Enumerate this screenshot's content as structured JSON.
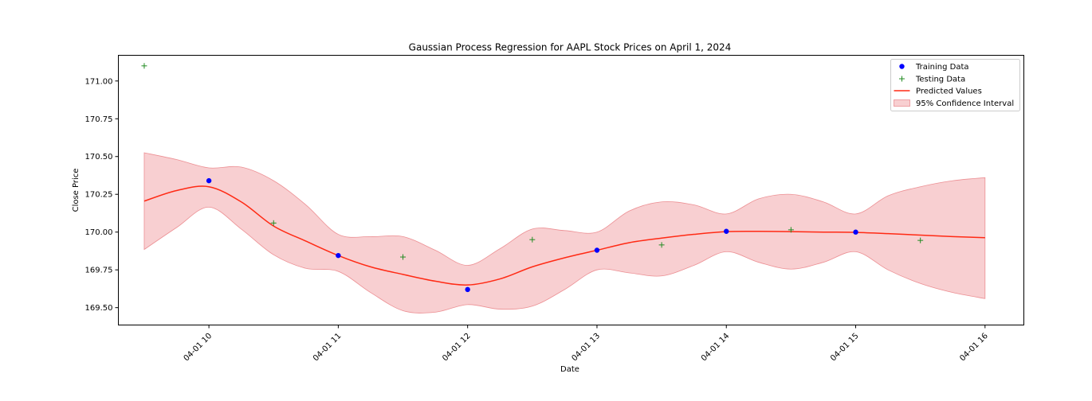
{
  "chart_data": {
    "type": "line",
    "title": "Gaussian Process Regression for AAPL Stock Prices on April 1, 2024",
    "xlabel": "Date",
    "ylabel": "Close Price",
    "x_ticks": [
      "04-01 10",
      "04-01 11",
      "04-01 12",
      "04-01 13",
      "04-01 14",
      "04-01 15",
      "04-01 16"
    ],
    "x_tick_values": [
      10,
      11,
      12,
      13,
      14,
      15,
      16
    ],
    "y_ticks": [
      "169.50",
      "169.75",
      "170.00",
      "170.25",
      "170.50",
      "170.75",
      "171.00"
    ],
    "y_tick_values": [
      169.5,
      169.75,
      170.0,
      170.25,
      170.5,
      170.75,
      171.0
    ],
    "xlim": [
      9.3,
      16.3
    ],
    "ylim": [
      169.385,
      171.17
    ],
    "grid": false,
    "legend_position": "top-right",
    "series": [
      {
        "name": "Training Data",
        "kind": "scatter",
        "marker": "circle",
        "color": "#0000ff",
        "x": [
          10,
          11,
          12,
          13,
          14,
          15
        ],
        "y": [
          170.34,
          169.845,
          169.62,
          169.88,
          170.005,
          170.0
        ]
      },
      {
        "name": "Testing Data",
        "kind": "scatter",
        "marker": "plus",
        "color": "#228b22",
        "x": [
          9.5,
          10.5,
          11.5,
          12.5,
          13.5,
          14.5,
          15.5
        ],
        "y": [
          171.1,
          170.06,
          169.835,
          169.95,
          169.915,
          170.015,
          169.945
        ]
      },
      {
        "name": "Predicted Values",
        "kind": "line",
        "color": "#ff2a14",
        "x": [
          9.5,
          9.75,
          10.0,
          10.25,
          10.5,
          10.75,
          11.0,
          11.25,
          11.5,
          11.75,
          12.0,
          12.25,
          12.5,
          12.75,
          13.0,
          13.25,
          13.5,
          13.75,
          14.0,
          14.25,
          14.5,
          14.75,
          15.0,
          15.25,
          15.5,
          15.75,
          16.0
        ],
        "y": [
          170.205,
          170.275,
          170.3,
          170.2,
          170.04,
          169.94,
          169.845,
          169.77,
          169.72,
          169.675,
          169.65,
          169.69,
          169.77,
          169.83,
          169.88,
          169.93,
          169.96,
          169.985,
          170.003,
          170.005,
          170.003,
          170.0,
          169.998,
          169.99,
          169.98,
          169.97,
          169.963
        ]
      },
      {
        "name": "95% Confidence Interval",
        "kind": "band",
        "color": "#f4b5b8",
        "x": [
          9.5,
          9.75,
          10.0,
          10.25,
          10.5,
          10.75,
          11.0,
          11.25,
          11.5,
          11.75,
          12.0,
          12.25,
          12.5,
          12.75,
          13.0,
          13.25,
          13.5,
          13.75,
          14.0,
          14.25,
          14.5,
          14.75,
          15.0,
          15.25,
          15.5,
          15.75,
          16.0
        ],
        "upper": [
          170.525,
          170.48,
          170.425,
          170.43,
          170.34,
          170.18,
          169.985,
          169.97,
          169.97,
          169.88,
          169.78,
          169.89,
          170.02,
          170.01,
          170.0,
          170.14,
          170.2,
          170.18,
          170.12,
          170.22,
          170.25,
          170.2,
          170.12,
          170.24,
          170.3,
          170.34,
          170.36
        ],
        "lower": [
          169.885,
          170.03,
          170.165,
          170.02,
          169.85,
          169.76,
          169.74,
          169.6,
          169.48,
          169.47,
          169.52,
          169.49,
          169.51,
          169.62,
          169.75,
          169.73,
          169.71,
          169.78,
          169.87,
          169.8,
          169.755,
          169.8,
          169.87,
          169.75,
          169.66,
          169.6,
          169.56
        ]
      }
    ]
  }
}
